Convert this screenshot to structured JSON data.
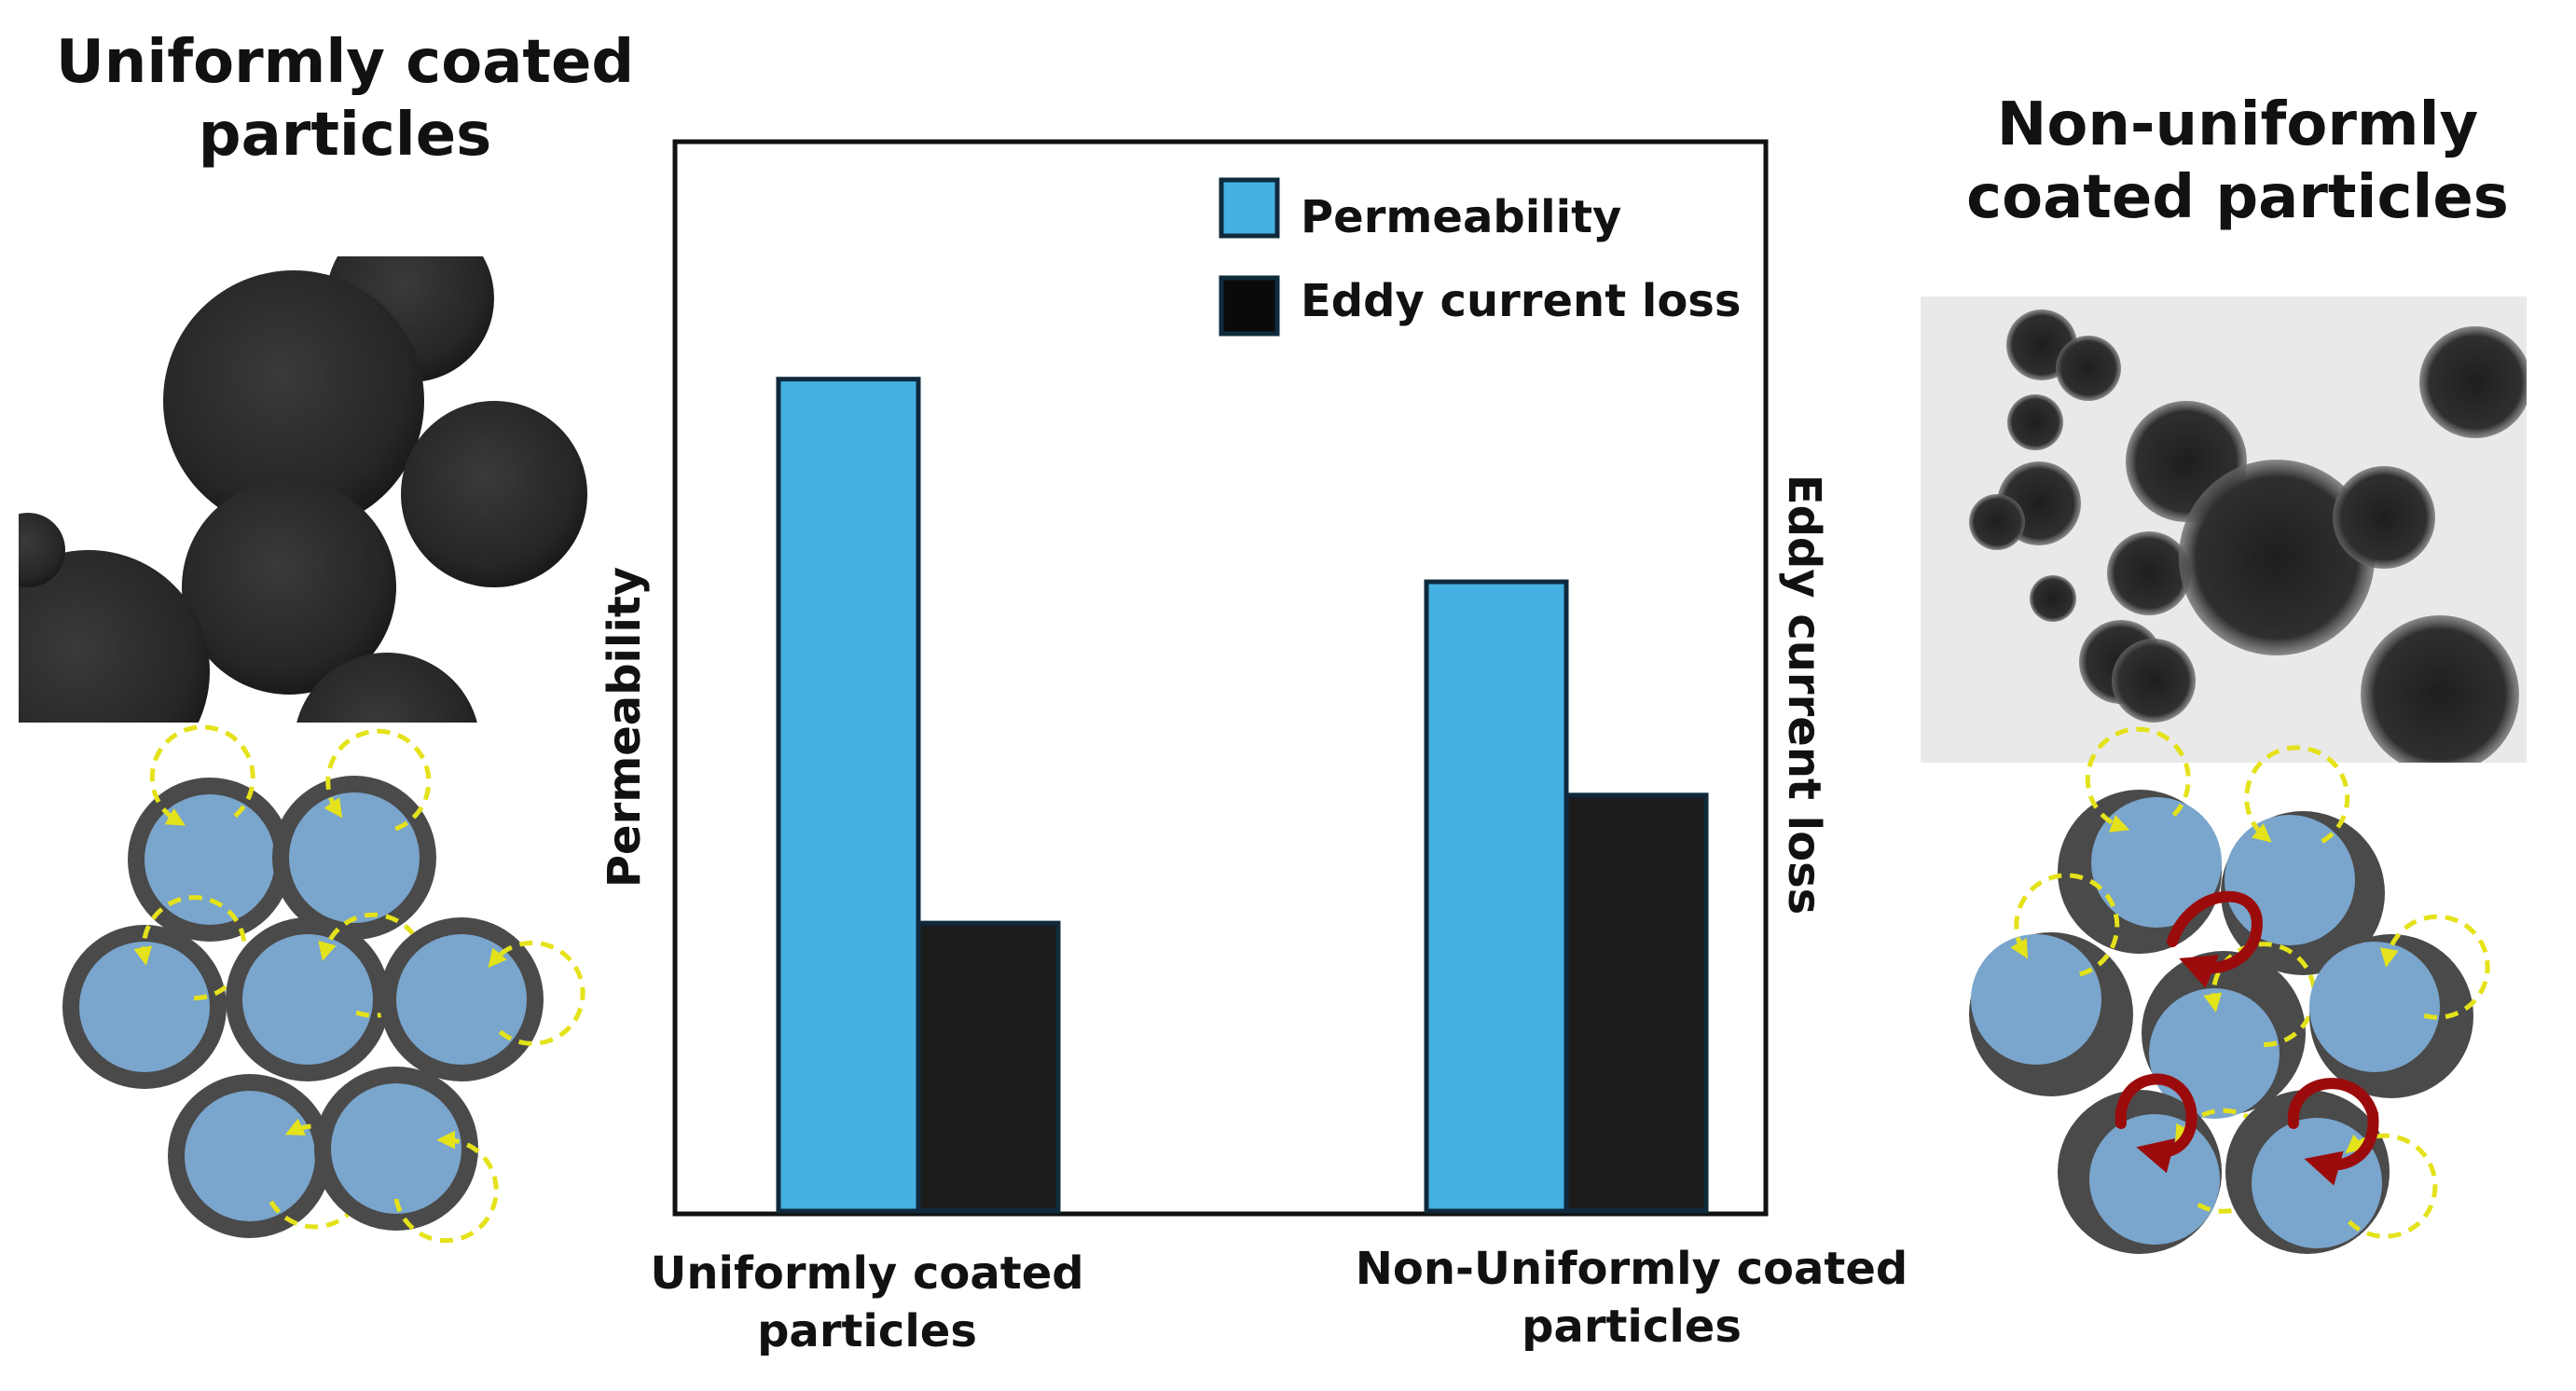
{
  "left_panel": {
    "title": "Uniformly coated particles"
  },
  "right_panel": {
    "title": "Non-uniformly coated particles"
  },
  "chart_data": {
    "type": "bar",
    "categories": [
      "Uniformly coated particles",
      "Non-Uniformly coated particles"
    ],
    "ylabel": "Permeability",
    "ylabel_right": "Eddy current loss",
    "xlabel": "",
    "ylim": [
      0,
      100
    ],
    "grid": false,
    "legend_position": "top-right",
    "series": [
      {
        "name": "Permeability",
        "values": [
          78,
          59
        ],
        "color": "#45b1e2"
      },
      {
        "name": "Eddy current loss",
        "values": [
          27,
          39
        ],
        "color": "#1c1c1c"
      }
    ]
  },
  "colors": {
    "particle_core": "#7aa5cc",
    "particle_shell": "#4a4a4a",
    "domain_arrow": "#e4e21a",
    "eddy_arrow": "#9c0b0b",
    "bar_outline": "#0f2a3c"
  }
}
